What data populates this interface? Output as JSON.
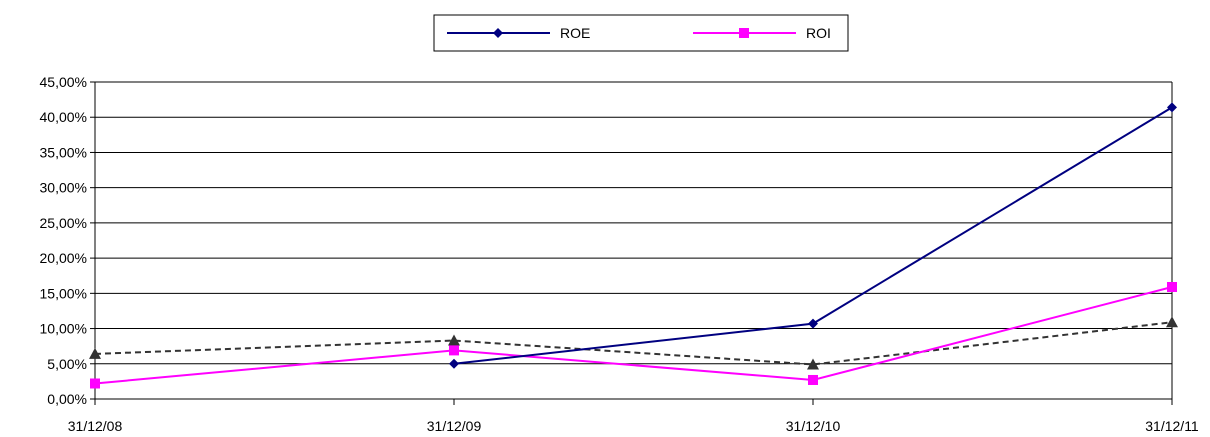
{
  "chart_data": {
    "type": "line",
    "categories": [
      "31/12/08",
      "31/12/09",
      "31/12/10",
      "31/12/11"
    ],
    "yticks": [
      "0,00%",
      "5,00%",
      "10,00%",
      "15,00%",
      "20,00%",
      "25,00%",
      "30,00%",
      "35,00%",
      "40,00%",
      "45,00%"
    ],
    "ylim": [
      0,
      45
    ],
    "y_unit": "%",
    "grid": "horizontal",
    "legend_position": "top-center",
    "series": [
      {
        "name": "ROE",
        "values": [
          null,
          5.0,
          10.7,
          41.4
        ],
        "color": "#000080",
        "marker": "diamond",
        "dash": "solid",
        "legend": true
      },
      {
        "name": "ROI",
        "values": [
          2.2,
          6.9,
          2.7,
          15.9
        ],
        "color": "#ff00ff",
        "marker": "square",
        "dash": "solid",
        "legend": true
      },
      {
        "name": "",
        "values": [
          6.4,
          8.3,
          4.9,
          10.9
        ],
        "color": "#333333",
        "marker": "triangle",
        "dash": "dashed",
        "legend": false
      }
    ]
  }
}
